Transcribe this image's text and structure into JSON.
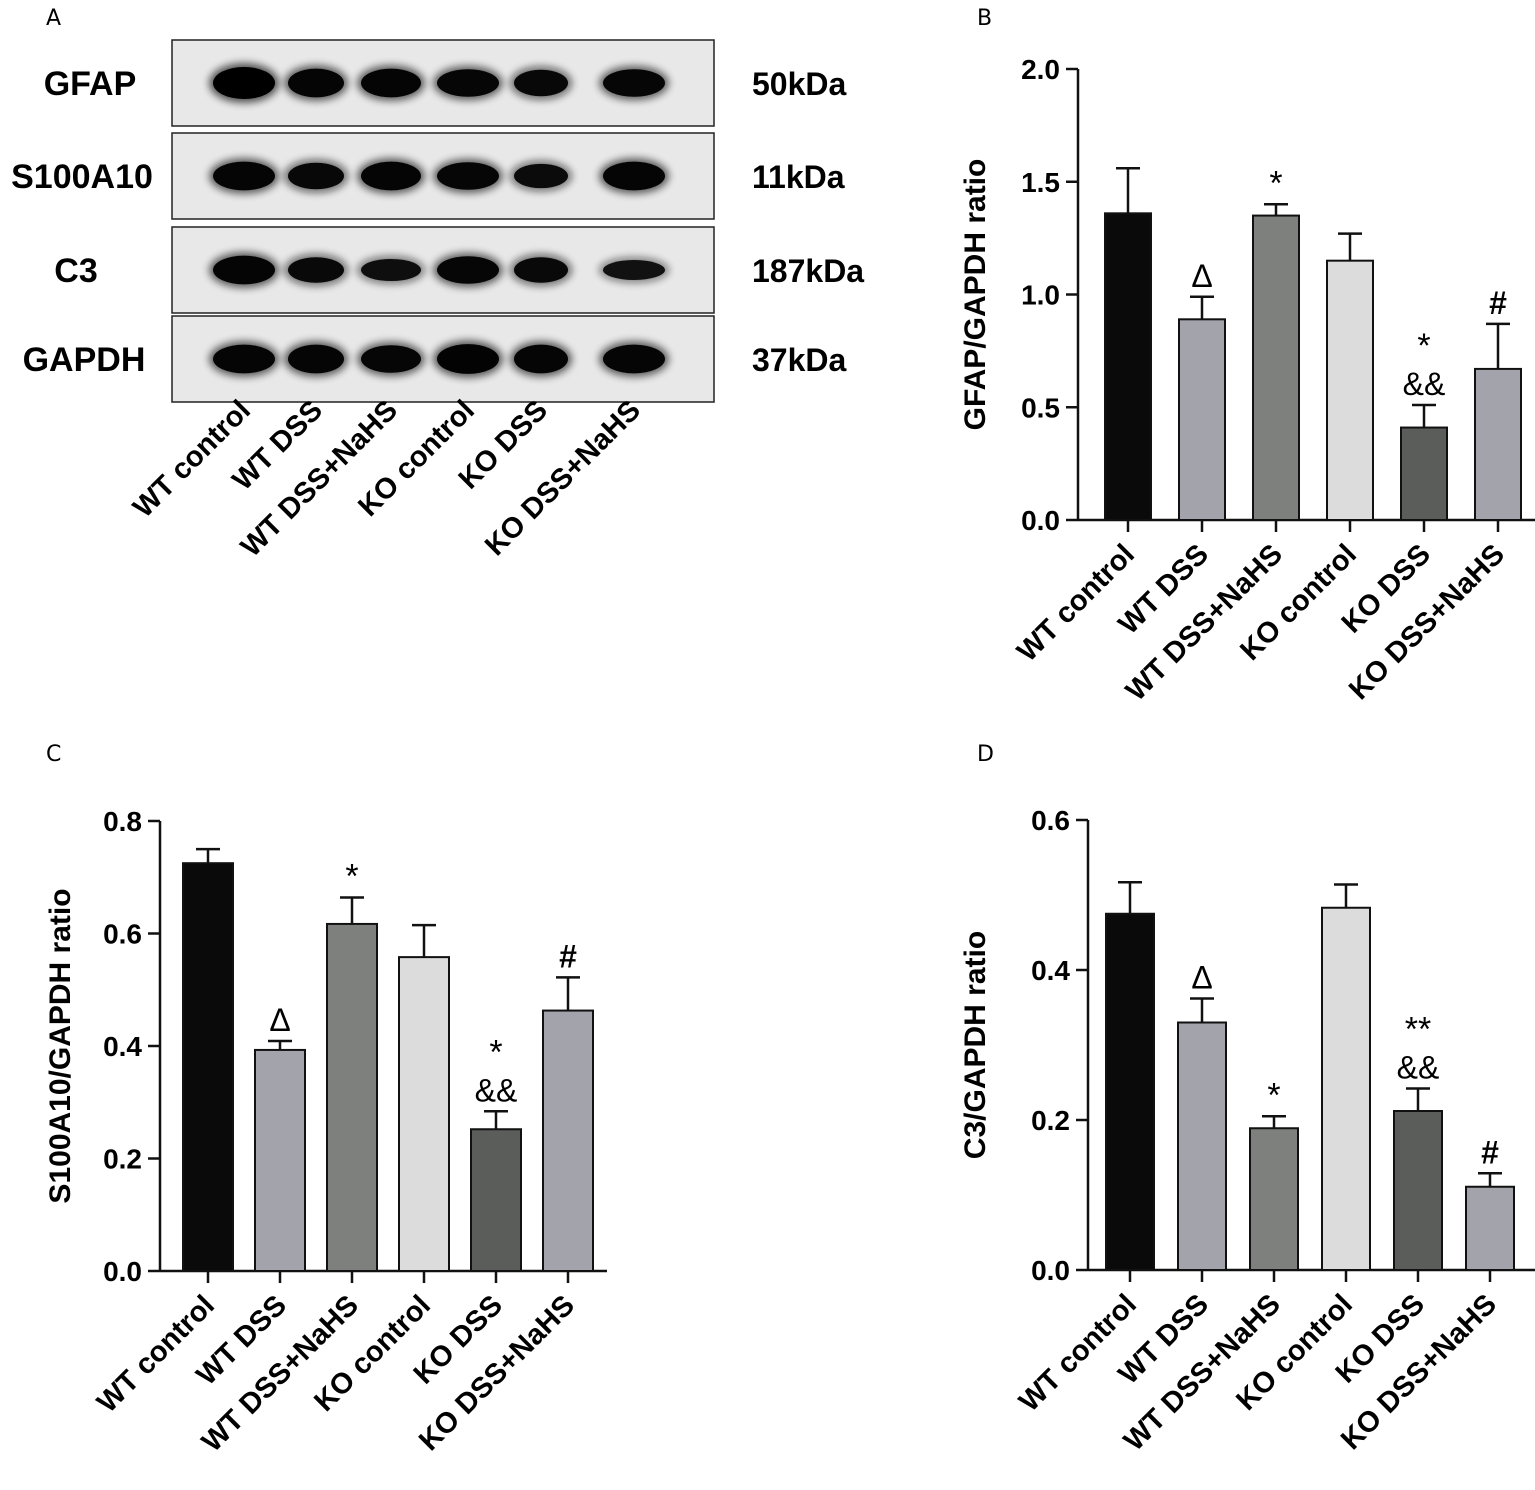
{
  "panels": {
    "A": "A",
    "B": "B",
    "C": "C",
    "D": "D"
  },
  "western_blot": {
    "proteins": [
      {
        "name": "GFAP",
        "size": "50kDa",
        "intensities": [
          1.0,
          0.85,
          0.85,
          0.8,
          0.75,
          0.8
        ]
      },
      {
        "name": "S100A10",
        "size": "11kDa",
        "intensities": [
          0.85,
          0.75,
          0.85,
          0.8,
          0.65,
          0.85
        ]
      },
      {
        "name": "C3",
        "size": "187kDa",
        "intensities": [
          0.85,
          0.7,
          0.55,
          0.8,
          0.7,
          0.45
        ]
      },
      {
        "name": "GAPDH",
        "size": "37kDa",
        "intensities": [
          0.85,
          0.85,
          0.8,
          0.9,
          0.85,
          0.85
        ]
      }
    ],
    "lanes": [
      "WT control",
      "WT DSS",
      "WT DSS+NaHS",
      "KO control",
      "KO DSS",
      "KO DSS+NaHS"
    ]
  },
  "colors": {
    "bar_fills": [
      "#0a0a0a",
      "#a3a3ab",
      "#7d807d",
      "#dcdcdc",
      "#5a5d5a",
      "#a3a3ab"
    ]
  },
  "chart_data": [
    {
      "panel": "B",
      "type": "bar",
      "categories": [
        "WT control",
        "WT DSS",
        "WT DSS+NaHS",
        "KO control",
        "KO DSS",
        "KO DSS+NaHS"
      ],
      "values": [
        1.36,
        0.89,
        1.35,
        1.15,
        0.41,
        0.67
      ],
      "errors": [
        0.2,
        0.1,
        0.05,
        0.12,
        0.1,
        0.2
      ],
      "annotations": [
        [],
        [
          "Δ"
        ],
        [
          "*"
        ],
        [],
        [
          "*",
          "&&"
        ],
        [
          "#"
        ]
      ],
      "ylabel": "GFAP/GAPDH ratio",
      "ylim": [
        0,
        2.0
      ],
      "yticks": [
        "0.0",
        "0.5",
        "1.0",
        "1.5",
        "2.0"
      ]
    },
    {
      "panel": "C",
      "type": "bar",
      "categories": [
        "WT control",
        "WT DSS",
        "WT DSS+NaHS",
        "KO control",
        "KO DSS",
        "KO DSS+NaHS"
      ],
      "values": [
        0.725,
        0.393,
        0.617,
        0.558,
        0.252,
        0.463
      ],
      "errors": [
        0.025,
        0.016,
        0.047,
        0.057,
        0.032,
        0.059
      ],
      "annotations": [
        [],
        [
          "Δ"
        ],
        [
          "*"
        ],
        [],
        [
          "*",
          "&&"
        ],
        [
          "#"
        ]
      ],
      "ylabel": "S100A10/GAPDH ratio",
      "ylim": [
        0,
        0.8
      ],
      "yticks": [
        "0.0",
        "0.2",
        "0.4",
        "0.6",
        "0.8"
      ]
    },
    {
      "panel": "D",
      "type": "bar",
      "categories": [
        "WT control",
        "WT DSS",
        "WT DSS+NaHS",
        "KO control",
        "KO DSS",
        "KO DSS+NaHS"
      ],
      "values": [
        0.475,
        0.33,
        0.189,
        0.483,
        0.212,
        0.111
      ],
      "errors": [
        0.042,
        0.032,
        0.016,
        0.031,
        0.03,
        0.018
      ],
      "annotations": [
        [],
        [
          "Δ"
        ],
        [
          "*"
        ],
        [],
        [
          "**",
          "&&"
        ],
        [
          "#"
        ]
      ],
      "ylabel": "C3/GAPDH ratio",
      "ylim": [
        0,
        0.6
      ],
      "yticks": [
        "0.0",
        "0.2",
        "0.4",
        "0.6"
      ]
    }
  ]
}
